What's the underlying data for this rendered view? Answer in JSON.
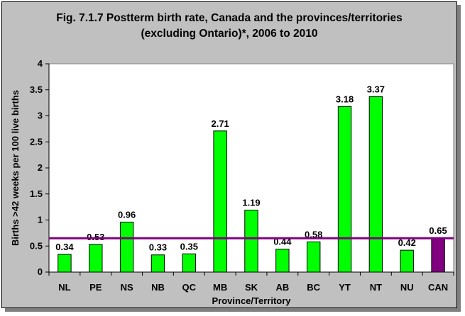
{
  "chart_data": {
    "type": "bar",
    "title_line1": "Fig. 7.1.7 Postterm birth rate, Canada and the provinces/territories",
    "title_line2": "(excluding Ontario)*, 2006 to 2010",
    "xlabel": "Province/Territory",
    "ylabel": "Births >42 weeks per 100 live births",
    "categories": [
      "NL",
      "PE",
      "NS",
      "NB",
      "QC",
      "MB",
      "SK",
      "AB",
      "BC",
      "YT",
      "NT",
      "NU",
      "CAN"
    ],
    "values": [
      0.34,
      0.53,
      0.96,
      0.33,
      0.35,
      2.71,
      1.19,
      0.44,
      0.58,
      3.18,
      3.37,
      0.42,
      0.65
    ],
    "value_labels": [
      "0.34",
      "0.53",
      "0.96",
      "0.33",
      "0.35",
      "2.71",
      "1.19",
      "0.44",
      "0.58",
      "3.18",
      "3.37",
      "0.42",
      "0.65"
    ],
    "yticks": [
      "0",
      "0.5",
      "1",
      "1.5",
      "2",
      "2.5",
      "3",
      "3.5",
      "4"
    ],
    "ylim": [
      0,
      4
    ],
    "reference_line": 0.65,
    "grid": false,
    "colors": {
      "bar": "#00ff00",
      "highlight_bar": "#800080",
      "reference_line": "#800080",
      "plot_bg": "#ffffff",
      "chart_bg": "#c0c0c0"
    },
    "highlight_category": "CAN"
  }
}
